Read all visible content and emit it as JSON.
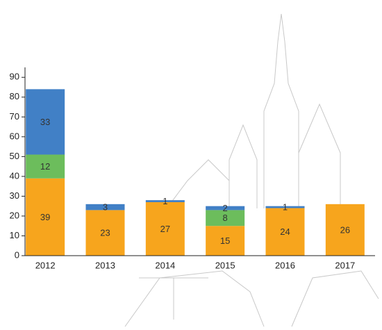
{
  "chart_data": {
    "type": "stacked_bar",
    "categories": [
      "2012",
      "2013",
      "2014",
      "2015",
      "2016",
      "2017"
    ],
    "series": [
      {
        "color": "#f7a51d",
        "values": [
          39,
          23,
          27,
          15,
          24,
          26
        ]
      },
      {
        "color": "#6cbd5c",
        "values": [
          12,
          null,
          null,
          8,
          null,
          null
        ]
      },
      {
        "color": "#4180c6",
        "values": [
          33,
          3,
          1,
          2,
          1,
          null
        ]
      }
    ],
    "ylim": [
      0,
      95
    ],
    "yticks": [
      0,
      10,
      20,
      30,
      40,
      50,
      60,
      70,
      80,
      90
    ]
  }
}
